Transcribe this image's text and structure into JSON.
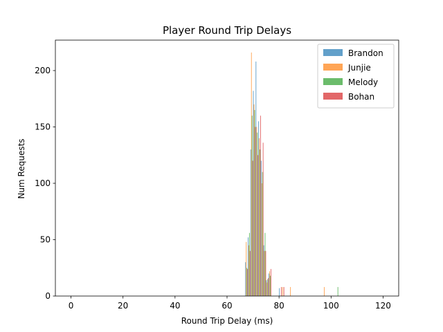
{
  "chart_data": {
    "type": "histogram",
    "title": "Player Round Trip Delays",
    "xlabel": "Round Trip Delay (ms)",
    "ylabel": "Num Requests",
    "xlim": [
      -6,
      126
    ],
    "ylim": [
      0,
      227
    ],
    "xticks": [
      0,
      20,
      40,
      60,
      80,
      100,
      120
    ],
    "yticks": [
      0,
      50,
      100,
      150,
      200
    ],
    "legend_position": "top-right",
    "bin_width_ms": 0.25,
    "series": [
      {
        "name": "Brandon",
        "color": "#1f77b4",
        "bars": [
          {
            "x": 67,
            "y": 30
          },
          {
            "x": 68,
            "y": 52
          },
          {
            "x": 69,
            "y": 130
          },
          {
            "x": 70,
            "y": 182
          },
          {
            "x": 71,
            "y": 208
          },
          {
            "x": 72,
            "y": 155
          },
          {
            "x": 73,
            "y": 120
          },
          {
            "x": 74,
            "y": 45
          },
          {
            "x": 75,
            "y": 14
          },
          {
            "x": 76,
            "y": 20
          },
          {
            "x": 80,
            "y": 7
          }
        ]
      },
      {
        "name": "Junjie",
        "color": "#ff7f0e",
        "bars": [
          {
            "x": 67,
            "y": 48
          },
          {
            "x": 68,
            "y": 45
          },
          {
            "x": 69,
            "y": 216
          },
          {
            "x": 70,
            "y": 170
          },
          {
            "x": 71,
            "y": 150
          },
          {
            "x": 72,
            "y": 140
          },
          {
            "x": 73,
            "y": 100
          },
          {
            "x": 74,
            "y": 40
          },
          {
            "x": 75,
            "y": 12
          },
          {
            "x": 76,
            "y": 22
          },
          {
            "x": 81,
            "y": 8
          },
          {
            "x": 84,
            "y": 8
          },
          {
            "x": 97,
            "y": 8
          }
        ]
      },
      {
        "name": "Melody",
        "color": "#2ca02c",
        "bars": [
          {
            "x": 67,
            "y": 25
          },
          {
            "x": 68,
            "y": 56
          },
          {
            "x": 69,
            "y": 160
          },
          {
            "x": 70,
            "y": 165
          },
          {
            "x": 71,
            "y": 145
          },
          {
            "x": 72,
            "y": 130
          },
          {
            "x": 73,
            "y": 110
          },
          {
            "x": 74,
            "y": 56
          },
          {
            "x": 75,
            "y": 15
          },
          {
            "x": 76,
            "y": 18
          },
          {
            "x": 102,
            "y": 8
          }
        ]
      },
      {
        "name": "Bohan",
        "color": "#d62728",
        "bars": [
          {
            "x": 67,
            "y": 24
          },
          {
            "x": 68,
            "y": 40
          },
          {
            "x": 69,
            "y": 120
          },
          {
            "x": 70,
            "y": 150
          },
          {
            "x": 71,
            "y": 125
          },
          {
            "x": 72,
            "y": 160
          },
          {
            "x": 73,
            "y": 136
          },
          {
            "x": 74,
            "y": 40
          },
          {
            "x": 75,
            "y": 16
          },
          {
            "x": 76,
            "y": 24
          },
          {
            "x": 80,
            "y": 8
          },
          {
            "x": 81,
            "y": 8
          }
        ]
      }
    ]
  }
}
